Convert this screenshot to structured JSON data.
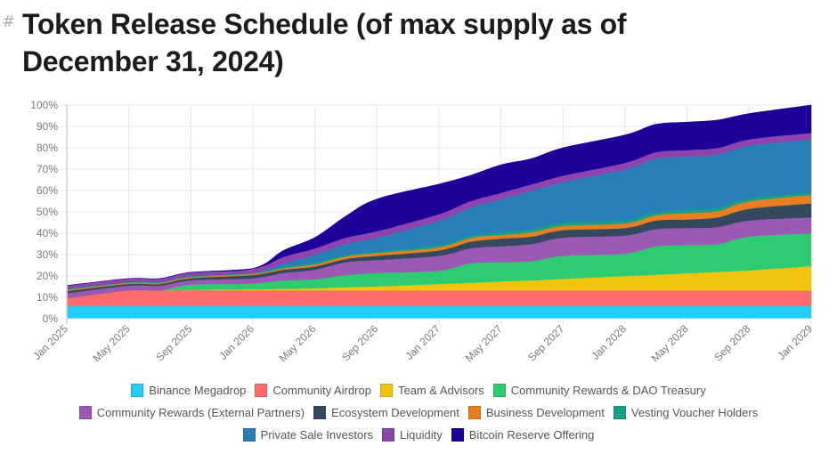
{
  "heading": {
    "anchor_icon": "#",
    "title": "Token Release Schedule (of max supply as of December 31, 2024)"
  },
  "chart_data": {
    "type": "area",
    "stacked": true,
    "title": "Token Release Schedule (of max supply as of December 31, 2024)",
    "xlabel": "",
    "ylabel": "",
    "ylim": [
      0,
      100
    ],
    "y_ticks": [
      "0%",
      "10%",
      "20%",
      "30%",
      "40%",
      "50%",
      "60%",
      "70%",
      "80%",
      "90%",
      "100%"
    ],
    "x_ticks": [
      "Jan 2025",
      "May 2025",
      "Sep 2025",
      "Jan 2026",
      "May 2026",
      "Sep 2026",
      "Jan 2027",
      "May 2027",
      "Sep 2027",
      "Jan 2028",
      "May 2028",
      "Sep 2028",
      "Jan 2029"
    ],
    "x_months_since_jan_2025": [
      0,
      4,
      6,
      8,
      12,
      14,
      16,
      18,
      20,
      24,
      26,
      28,
      30,
      32,
      36,
      38,
      40,
      42,
      44,
      48
    ],
    "grid": true,
    "legend_position": "bottom",
    "unit": "percent of max supply (stacked increments)",
    "series": [
      {
        "name": "Binance Megadrop",
        "color": "#22ccf5",
        "values": [
          6,
          6,
          6,
          6,
          6,
          6,
          6,
          6,
          6,
          6,
          6,
          6,
          6,
          6,
          6,
          6,
          6,
          6,
          6,
          6
        ]
      },
      {
        "name": "Community Airdrop",
        "color": "#ff6b6b",
        "values": [
          3.6,
          7.3,
          7.3,
          7.3,
          7.3,
          7.3,
          7.3,
          7.3,
          7.3,
          7.3,
          7.3,
          7.3,
          7.3,
          7.3,
          7.3,
          7.3,
          7.3,
          7.3,
          7.3,
          7.3
        ]
      },
      {
        "name": "Team & Advisors",
        "color": "#f1c40f",
        "values": [
          0,
          0,
          0,
          0.2,
          0.5,
          0.7,
          1.0,
          1.5,
          1.9,
          3.0,
          3.5,
          4.2,
          4.7,
          5.4,
          6.7,
          7.3,
          8.0,
          8.7,
          9.4,
          11.3
        ]
      },
      {
        "name": "Community Rewards & DAO Treasury",
        "color": "#2ecc71",
        "values": [
          0,
          0,
          0,
          2.5,
          2.7,
          4.0,
          4.2,
          5.7,
          6.3,
          6.2,
          9.2,
          9.0,
          9.0,
          10.8,
          10.5,
          13.4,
          13.2,
          13.0,
          15.8,
          15.4
        ]
      },
      {
        "name": "Community Rewards (External Partners)",
        "color": "#9b59b6",
        "values": [
          2.4,
          2.2,
          2.2,
          2.0,
          2.5,
          3.5,
          4.5,
          6.0,
          6.0,
          7.0,
          7.0,
          7.5,
          8.0,
          8.5,
          8.5,
          8.0,
          8.0,
          8.0,
          7.5,
          7.5
        ]
      },
      {
        "name": "Ecosystem Development",
        "color": "#34495e",
        "values": [
          1.0,
          0.8,
          0.8,
          1.0,
          1.5,
          1.5,
          1.5,
          1.5,
          2.0,
          2.5,
          3.0,
          3.5,
          3.5,
          3.5,
          3.5,
          4.0,
          4.0,
          4.5,
          5.5,
          6.5
        ]
      },
      {
        "name": "Business Development",
        "color": "#e67e22",
        "values": [
          0.5,
          0.5,
          0.5,
          0.5,
          0.5,
          0.7,
          1.0,
          1.2,
          1.3,
          1.5,
          1.8,
          1.8,
          2.0,
          2.0,
          2.2,
          2.5,
          3.0,
          3.0,
          3.5,
          4.0
        ]
      },
      {
        "name": "Vesting Voucher Holders",
        "color": "#16a085",
        "values": [
          0.5,
          0.4,
          0.4,
          0.5,
          0.5,
          0.6,
          0.7,
          0.8,
          0.7,
          1.0,
          1.0,
          1.2,
          1.5,
          1.5,
          1.5,
          1.5,
          1.5,
          1.5,
          1.5,
          1.0
        ]
      },
      {
        "name": "Private Sale Investors",
        "color": "#2980b9",
        "values": [
          0,
          0,
          0,
          0,
          0,
          1.7,
          3.8,
          5.0,
          6.5,
          11.5,
          13.2,
          15.5,
          18.0,
          19.0,
          23.8,
          25.0,
          25.0,
          25.0,
          24.5,
          25.0
        ]
      },
      {
        "name": "Liquidity",
        "color": "#8e44ad",
        "values": [
          1.5,
          1.6,
          1.6,
          1.7,
          2.0,
          3.0,
          3.0,
          3.0,
          3.0,
          3.0,
          3.0,
          3.0,
          3.0,
          3.0,
          3.0,
          3.0,
          3.0,
          3.0,
          3.0,
          3.0
        ]
      },
      {
        "name": "Bitcoin Reserve Offering",
        "color": "#1f0099",
        "values": [
          0,
          0,
          0,
          0,
          0,
          3.0,
          5.0,
          10.0,
          15.0,
          14.0,
          12.0,
          13.0,
          12.0,
          13.0,
          13.0,
          13.0,
          13.0,
          13.0,
          12.0,
          13.0
        ]
      }
    ]
  },
  "legend": {
    "rows": [
      [
        0,
        1,
        2,
        3
      ],
      [
        4,
        5,
        6,
        7
      ],
      [
        8,
        9,
        10
      ]
    ]
  }
}
